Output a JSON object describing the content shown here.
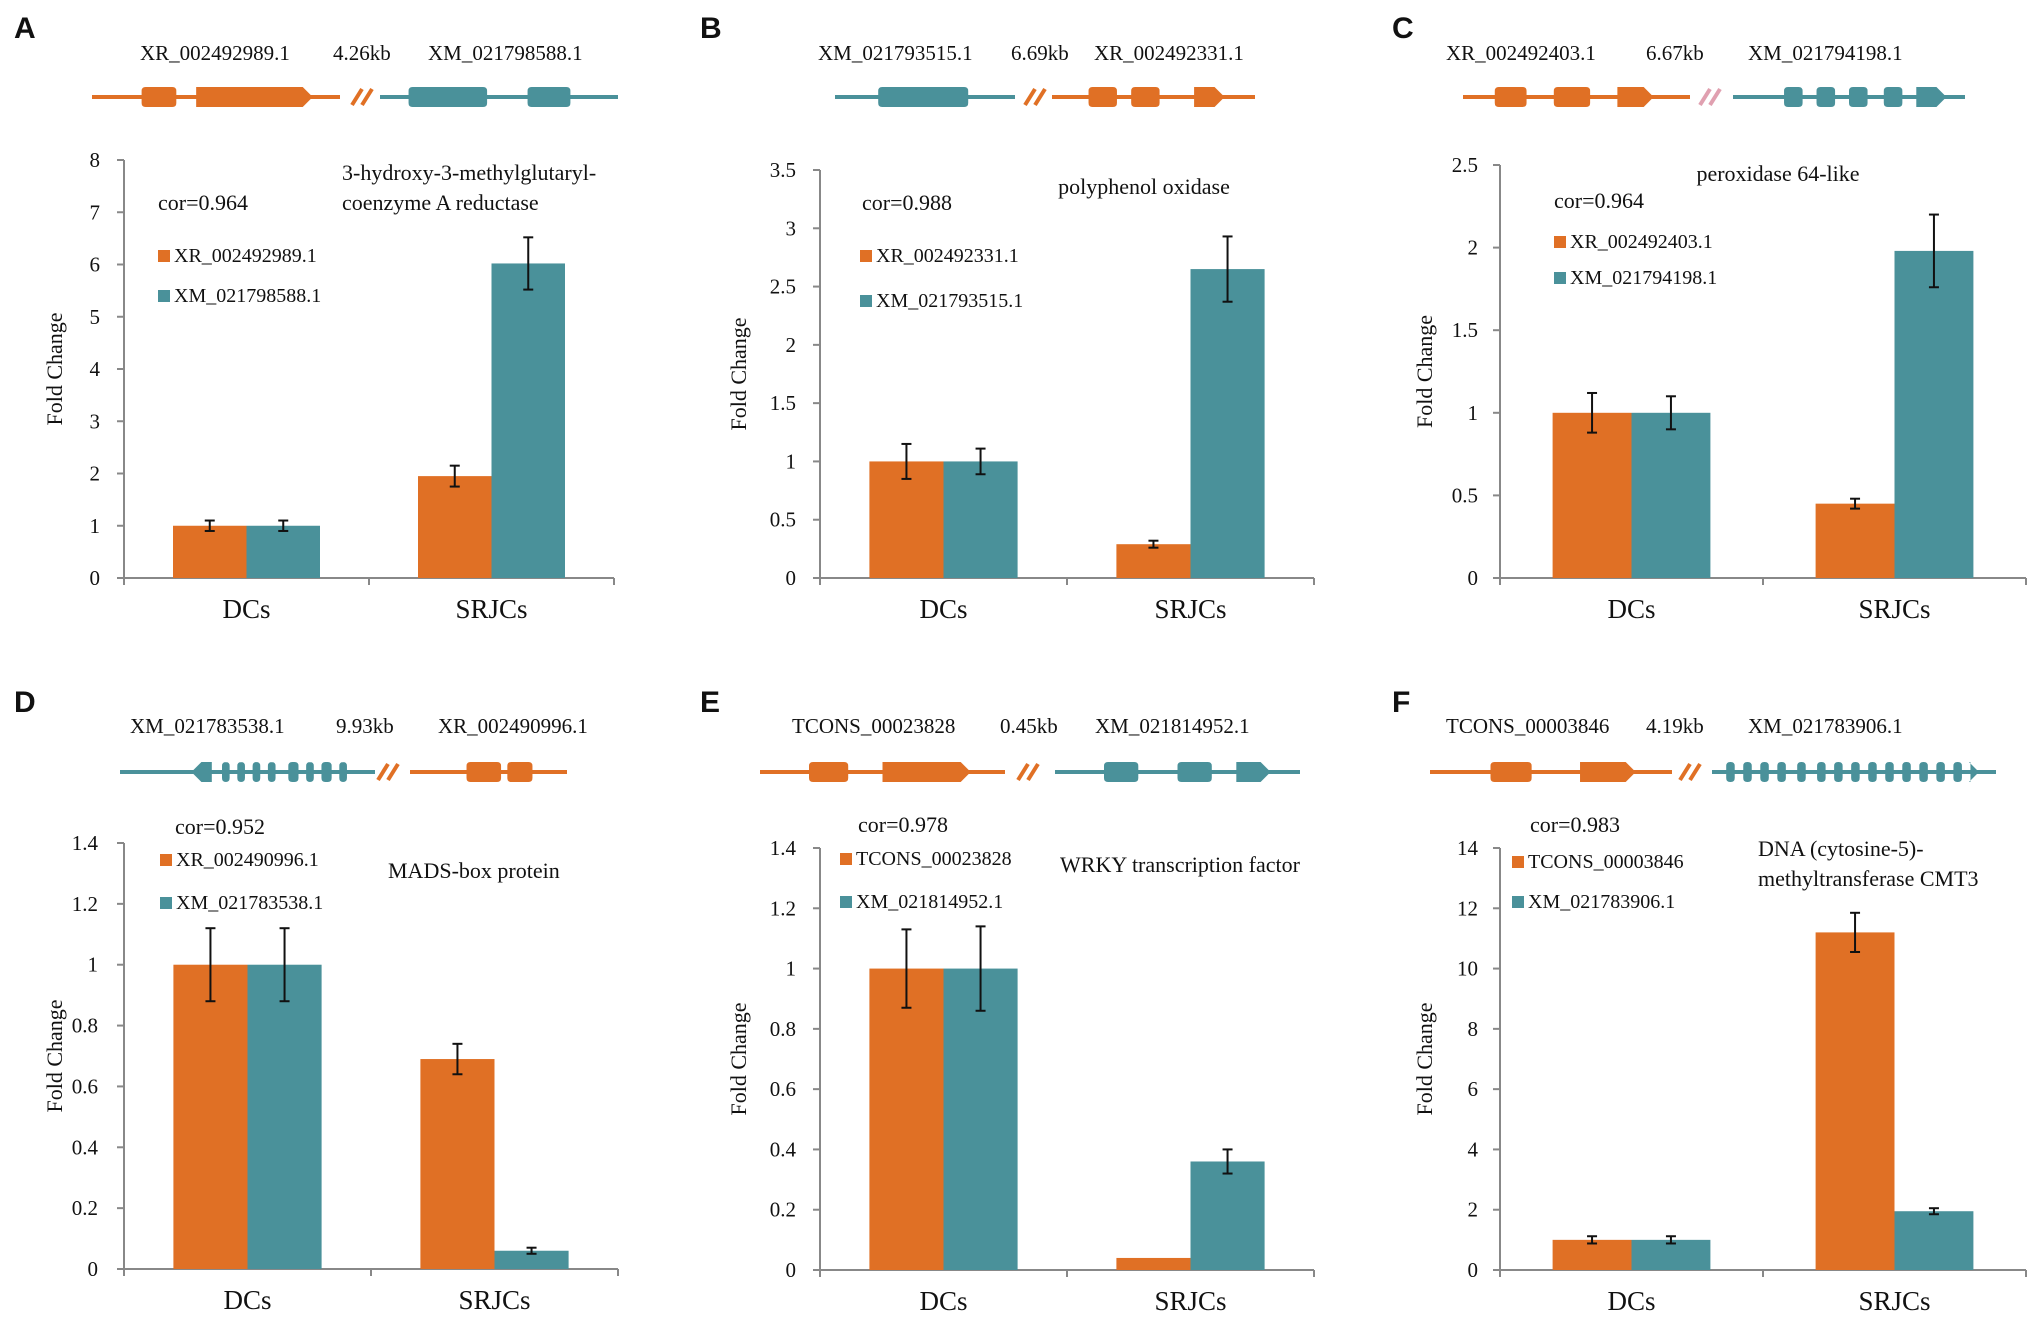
{
  "colors": {
    "orange": "#e07025",
    "teal": "#4a919a",
    "pink": "#e0a0b0",
    "axis": "#888888",
    "errbar": "#111111"
  },
  "chart_data": [
    {
      "panel": "A",
      "type": "bar",
      "gene_left": "XR_002492989.1",
      "distance": "4.26kb",
      "gene_right": "XM_021798588.1",
      "structure_left": {
        "color": "orange",
        "dir": "right",
        "exons": [
          [
            0.2,
            0.34
          ],
          [
            0.42,
            0.89
          ]
        ]
      },
      "structure_right": {
        "color": "teal",
        "dir": "none",
        "exons": [
          [
            0.12,
            0.45
          ],
          [
            0.62,
            0.8
          ]
        ]
      },
      "break_color": "orange",
      "title": [
        "3-hydroxy-3-methylglutaryl-",
        "coenzyme  A reductase"
      ],
      "cor": "cor=0.964",
      "ylabel": "Fold Change",
      "ylim": [
        0,
        8
      ],
      "yticks": [
        0,
        1,
        2,
        3,
        4,
        5,
        6,
        7,
        8
      ],
      "ytick_labels": [
        "0",
        "1",
        "2",
        "3",
        "4",
        "5",
        "6",
        "7",
        "8"
      ],
      "categories": [
        "DCs",
        "SRJCs"
      ],
      "series": [
        {
          "name": "XR_002492989.1",
          "color": "orange",
          "values": [
            1.0,
            1.95
          ],
          "errors": [
            0.1,
            0.2
          ]
        },
        {
          "name": "XM_021798588.1",
          "color": "teal",
          "values": [
            1.0,
            6.02
          ],
          "errors": [
            0.1,
            0.5
          ]
        }
      ]
    },
    {
      "panel": "B",
      "type": "bar",
      "gene_left": "XM_021793515.1",
      "distance": "6.69kb",
      "gene_right": "XR_002492331.1",
      "structure_left": {
        "color": "teal",
        "dir": "none",
        "exons": [
          [
            0.24,
            0.74
          ]
        ]
      },
      "structure_right": {
        "color": "orange",
        "dir": "right",
        "exons": [
          [
            0.18,
            0.32
          ],
          [
            0.39,
            0.53
          ],
          [
            0.7,
            0.85
          ]
        ]
      },
      "break_color": "orange",
      "title": [
        "polyphenol oxidase"
      ],
      "cor": "cor=0.988",
      "ylabel": "Fold Change",
      "ylim": [
        0,
        3.5
      ],
      "yticks": [
        0,
        0.5,
        1,
        1.5,
        2,
        2.5,
        3,
        3.5
      ],
      "ytick_labels": [
        "0",
        "0.5",
        "1",
        "1.5",
        "2",
        "2.5",
        "3",
        "3.5"
      ],
      "categories": [
        "DCs",
        "SRJCs"
      ],
      "series": [
        {
          "name": "XR_002492331.1",
          "color": "orange",
          "values": [
            1.0,
            0.29
          ],
          "errors": [
            0.15,
            0.03
          ]
        },
        {
          "name": "XM_021793515.1",
          "color": "teal",
          "values": [
            1.0,
            2.65
          ],
          "errors": [
            0.11,
            0.28
          ]
        }
      ]
    },
    {
      "panel": "C",
      "type": "bar",
      "gene_left": "XR_002492403.1",
      "distance": "6.67kb",
      "gene_right": "XM_021794198.1",
      "structure_left": {
        "color": "orange",
        "dir": "right",
        "exons": [
          [
            0.14,
            0.28
          ],
          [
            0.4,
            0.56
          ],
          [
            0.68,
            0.84
          ]
        ]
      },
      "structure_right": {
        "color": "teal",
        "dir": "right",
        "exons": [
          [
            0.22,
            0.3
          ],
          [
            0.36,
            0.44
          ],
          [
            0.5,
            0.58
          ],
          [
            0.65,
            0.73
          ],
          [
            0.79,
            0.92
          ]
        ]
      },
      "break_color": "pink",
      "title": [
        "peroxidase  64-like"
      ],
      "cor": "cor=0.964",
      "ylabel": "Fold Change",
      "ylim": [
        0,
        2.5
      ],
      "yticks": [
        0,
        0.5,
        1,
        1.5,
        2,
        2.5
      ],
      "ytick_labels": [
        "0",
        "0.5",
        "1",
        "1.5",
        "2",
        "2.5"
      ],
      "categories": [
        "DCs",
        "SRJCs"
      ],
      "series": [
        {
          "name": "XR_002492403.1",
          "color": "orange",
          "values": [
            1.0,
            0.45
          ],
          "errors": [
            0.12,
            0.03
          ]
        },
        {
          "name": "XM_021794198.1",
          "color": "teal",
          "values": [
            1.0,
            1.98
          ],
          "errors": [
            0.1,
            0.22
          ]
        }
      ]
    },
    {
      "panel": "D",
      "type": "bar",
      "gene_left": "XM_021783538.1",
      "distance": "9.93kb",
      "gene_right": "XR_002490996.1",
      "structure_left": {
        "color": "teal",
        "dir": "left",
        "exons": [
          [
            0.28,
            0.36
          ],
          [
            0.4,
            0.43
          ],
          [
            0.46,
            0.49
          ],
          [
            0.52,
            0.55
          ],
          [
            0.58,
            0.61
          ],
          [
            0.66,
            0.7
          ],
          [
            0.73,
            0.76
          ],
          [
            0.79,
            0.83
          ],
          [
            0.86,
            0.89
          ]
        ]
      },
      "structure_right": {
        "color": "orange",
        "dir": "none",
        "exons": [
          [
            0.36,
            0.58
          ],
          [
            0.62,
            0.78
          ]
        ]
      },
      "break_color": "orange",
      "title": [
        "MADS-box protein"
      ],
      "cor": "cor=0.952",
      "ylabel": "Fold Change",
      "ylim": [
        0,
        1.4
      ],
      "yticks": [
        0,
        0.2,
        0.4,
        0.6,
        0.8,
        1,
        1.2,
        1.4
      ],
      "ytick_labels": [
        "0",
        "0.2",
        "0.4",
        "0.6",
        "0.8",
        "1",
        "1.2",
        "1.4"
      ],
      "categories": [
        "DCs",
        "SRJCs"
      ],
      "series": [
        {
          "name": "XR_002490996.1",
          "color": "orange",
          "values": [
            1.0,
            0.69
          ],
          "errors": [
            0.12,
            0.05
          ]
        },
        {
          "name": "XM_021783538.1",
          "color": "teal",
          "values": [
            1.0,
            0.06
          ],
          "errors": [
            0.12,
            0.01
          ]
        }
      ]
    },
    {
      "panel": "E",
      "type": "bar",
      "gene_left": "TCONS_00023828",
      "distance": "0.45kb",
      "gene_right": "XM_021814952.1",
      "structure_left": {
        "color": "orange",
        "dir": "right",
        "exons": [
          [
            0.2,
            0.36
          ],
          [
            0.5,
            0.86
          ]
        ]
      },
      "structure_right": {
        "color": "teal",
        "dir": "right",
        "exons": [
          [
            0.2,
            0.34
          ],
          [
            0.5,
            0.64
          ],
          [
            0.74,
            0.88
          ]
        ]
      },
      "break_color": "orange",
      "title": [
        "WRKY  transcription factor"
      ],
      "cor": "cor=0.978",
      "ylabel": "Fold Change",
      "ylim": [
        0,
        1.4
      ],
      "yticks": [
        0,
        0.2,
        0.4,
        0.6,
        0.8,
        1,
        1.2,
        1.4
      ],
      "ytick_labels": [
        "0",
        "0.2",
        "0.4",
        "0.6",
        "0.8",
        "1",
        "1.2",
        "1.4"
      ],
      "categories": [
        "DCs",
        "SRJCs"
      ],
      "series": [
        {
          "name": "TCONS_00023828",
          "color": "orange",
          "values": [
            1.0,
            0.04
          ],
          "errors": [
            0.13,
            0.0
          ]
        },
        {
          "name": "XM_021814952.1",
          "color": "teal",
          "values": [
            1.0,
            0.36
          ],
          "errors": [
            0.14,
            0.04
          ]
        }
      ]
    },
    {
      "panel": "F",
      "type": "bar",
      "gene_left": "TCONS_00003846",
      "distance": "4.19kb",
      "gene_right": "XM_021783906.1",
      "structure_left": {
        "color": "orange",
        "dir": "right",
        "exons": [
          [
            0.25,
            0.42
          ],
          [
            0.62,
            0.85
          ]
        ]
      },
      "structure_right": {
        "color": "teal",
        "dir": "right",
        "exons": [
          [
            0.05,
            0.08
          ],
          [
            0.11,
            0.14
          ],
          [
            0.17,
            0.2
          ],
          [
            0.23,
            0.26
          ],
          [
            0.3,
            0.33
          ],
          [
            0.37,
            0.4
          ],
          [
            0.43,
            0.46
          ],
          [
            0.49,
            0.52
          ],
          [
            0.55,
            0.58
          ],
          [
            0.61,
            0.64
          ],
          [
            0.67,
            0.7
          ],
          [
            0.73,
            0.76
          ],
          [
            0.79,
            0.82
          ],
          [
            0.85,
            0.88
          ],
          [
            0.91,
            0.94
          ]
        ]
      },
      "break_color": "orange",
      "title": [
        "DNA  (cytosine-5)-",
        "methyltransferase  CMT3"
      ],
      "cor": "cor=0.983",
      "ylabel": "Fold Change",
      "ylim": [
        0,
        14
      ],
      "yticks": [
        0,
        2,
        4,
        6,
        8,
        10,
        12,
        14
      ],
      "ytick_labels": [
        "0",
        "2",
        "4",
        "6",
        "8",
        "10",
        "12",
        "14"
      ],
      "categories": [
        "DCs",
        "SRJCs"
      ],
      "series": [
        {
          "name": "TCONS_00003846",
          "color": "orange",
          "values": [
            1.0,
            11.2
          ],
          "errors": [
            0.12,
            0.65
          ]
        },
        {
          "name": "XM_021783906.1",
          "color": "teal",
          "values": [
            1.0,
            1.95
          ],
          "errors": [
            0.12,
            0.1
          ]
        }
      ]
    }
  ]
}
